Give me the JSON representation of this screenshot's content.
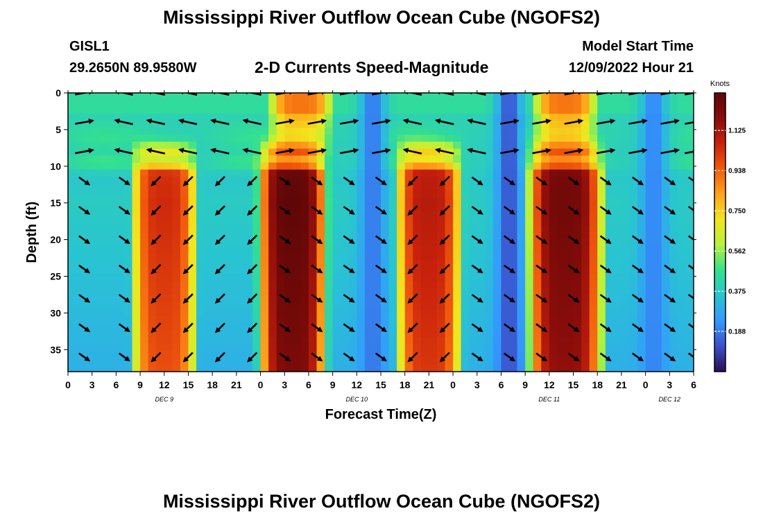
{
  "titles": {
    "top": "Mississippi River Outflow Ocean Cube (NGOFS2)",
    "bottom": "Mississippi River Outflow Ocean Cube (NGOFS2)"
  },
  "header": {
    "station": "GISL1",
    "coords": "29.2650N  89.9580W",
    "subtitle": "2-D Currents Speed-Magnitude",
    "start_label": "Model Start Time",
    "start_value": "12/09/2022 Hour 21"
  },
  "chart_data": {
    "type": "heatmap",
    "xlabel": "Forecast Time(Z)",
    "ylabel": "Depth (ft)",
    "x_unit": "forecast hour",
    "x_range": [
      0,
      78
    ],
    "y_range": [
      0,
      38
    ],
    "y_inverted": true,
    "x_ticks": [
      0,
      3,
      6,
      9,
      12,
      15,
      18,
      21,
      24,
      27,
      30,
      33,
      36,
      39,
      42,
      45,
      48,
      51,
      54,
      57,
      60,
      63,
      66,
      69,
      72,
      75,
      78
    ],
    "x_tick_labels": [
      "0",
      "3",
      "6",
      "9",
      "12",
      "15",
      "18",
      "21",
      "0",
      "3",
      "6",
      "9",
      "12",
      "15",
      "18",
      "21",
      "0",
      "3",
      "6",
      "9",
      "12",
      "15",
      "18",
      "21",
      "0",
      "3",
      "6"
    ],
    "y_ticks": [
      0,
      5,
      10,
      15,
      20,
      25,
      30,
      35
    ],
    "y_tick_labels": [
      "0",
      "5",
      "10",
      "15",
      "20",
      "25",
      "30",
      "35"
    ],
    "day_labels": [
      {
        "hour": 12,
        "label": "DEC 9"
      },
      {
        "hour": 36,
        "label": "DEC 10"
      },
      {
        "hour": 60,
        "label": "DEC 11"
      },
      {
        "hour": 75,
        "label": "DEC 12"
      }
    ],
    "colorbar": {
      "title": "Knots",
      "min": 0,
      "max": 1.3,
      "ticks": [
        0.188,
        0.375,
        0.562,
        0.75,
        0.938,
        1.125
      ],
      "tick_labels": [
        "0.188",
        "0.375",
        "0.562",
        "0.750",
        "0.938",
        "1.125"
      ],
      "colormap": [
        "#2b0f4f",
        "#3b4fc9",
        "#3399ff",
        "#29c4d1",
        "#33e08f",
        "#b6f23a",
        "#f2e51d",
        "#ffa31a",
        "#f25a0d",
        "#c9220c",
        "#8a0d0a",
        "#5e0707"
      ]
    },
    "speed_model": {
      "lower_peaks": [
        {
          "hour": 12,
          "speed": 1.05,
          "width": 4.5
        },
        {
          "hour": 28,
          "speed": 1.3,
          "width": 4.5
        },
        {
          "hour": 45,
          "speed": 1.1,
          "width": 4.5
        },
        {
          "hour": 62,
          "speed": 1.25,
          "width": 5.0
        }
      ],
      "upper_peaks": [
        {
          "hour": 29,
          "speed": 0.9,
          "width": 4.5
        },
        {
          "hour": 62,
          "speed": 0.9,
          "width": 4.5
        }
      ],
      "minima": [
        {
          "hour": 38,
          "speed": 0.18
        },
        {
          "hour": 55,
          "speed": 0.12
        },
        {
          "hour": 73,
          "speed": 0.2
        }
      ]
    },
    "vectors": {
      "hours": [
        2,
        7,
        11,
        15,
        19,
        23,
        27,
        31,
        35,
        39,
        43,
        47,
        51,
        55,
        59,
        63,
        67,
        71,
        75,
        78
      ],
      "depths": [
        0,
        4,
        8,
        12,
        16,
        20,
        24,
        28,
        32,
        36
      ],
      "upper_directions": [
        1,
        -1,
        -1,
        -1,
        -1,
        -1,
        1,
        1,
        1,
        1,
        -1,
        -1,
        -1,
        1,
        1,
        1,
        1,
        1,
        1,
        1
      ],
      "lower_directions": [
        1,
        1,
        -1,
        -1,
        -1,
        -1,
        1,
        1,
        1,
        1,
        -1,
        -1,
        1,
        1,
        1,
        1,
        1,
        1,
        1,
        1
      ]
    }
  }
}
